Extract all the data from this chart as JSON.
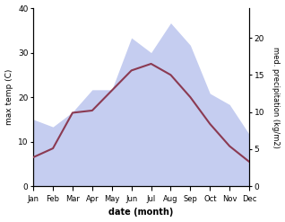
{
  "months": [
    "Jan",
    "Feb",
    "Mar",
    "Apr",
    "May",
    "Jun",
    "Jul",
    "Aug",
    "Sep",
    "Oct",
    "Nov",
    "Dec"
  ],
  "max_temp": [
    6.5,
    8.5,
    16.5,
    17.0,
    21.5,
    26.0,
    27.5,
    25.0,
    20.0,
    14.0,
    9.0,
    5.5
  ],
  "precipitation": [
    9.0,
    8.0,
    10.0,
    13.0,
    13.0,
    20.0,
    18.0,
    22.0,
    19.0,
    12.5,
    11.0,
    7.0
  ],
  "temp_color": "#8b3a52",
  "precip_fill_color": "#c5cdf0",
  "xlabel": "date (month)",
  "ylabel_left": "max temp (C)",
  "ylabel_right": "med. precipitation (kg/m2)",
  "ylim_left": [
    0,
    40
  ],
  "ylim_right": [
    0,
    24
  ],
  "yticks_left": [
    0,
    10,
    20,
    30,
    40
  ],
  "yticks_right": [
    0,
    5,
    10,
    15,
    20
  ],
  "background_color": "#ffffff",
  "line_width": 1.5
}
